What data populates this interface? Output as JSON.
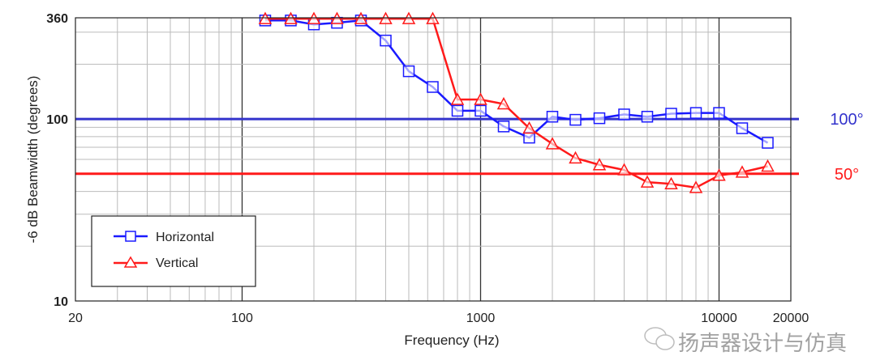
{
  "chart_data": {
    "type": "line",
    "title": "",
    "xlabel": "Frequency (Hz)",
    "ylabel": "-6 dB Beamwidth (degrees)",
    "xscale": "log",
    "yscale": "log",
    "xlim": [
      20,
      20000
    ],
    "ylim": [
      10,
      360
    ],
    "xticks": [
      20,
      100,
      1000,
      10000,
      20000
    ],
    "xtick_labels": [
      "20",
      "100",
      "1000",
      "10000",
      "20000"
    ],
    "yticks": [
      10,
      100,
      360
    ],
    "ytick_labels": [
      "10",
      "100",
      "360"
    ],
    "grid": true,
    "legend_position": "bottom-left",
    "x": [
      125,
      160,
      200,
      250,
      315,
      400,
      500,
      630,
      800,
      1000,
      1250,
      1600,
      2000,
      2500,
      3150,
      4000,
      5000,
      6300,
      8000,
      10000,
      12500,
      16000
    ],
    "series": [
      {
        "name": "Horizontal",
        "color": "#1a1aff",
        "marker": "square",
        "values": [
          348,
          348,
          331,
          338,
          348,
          270,
          183,
          150,
          111,
          111,
          91,
          79,
          103,
          99,
          101,
          106,
          103,
          107,
          108,
          108,
          89,
          74
        ]
      },
      {
        "name": "Vertical",
        "color": "#ff1a1a",
        "marker": "triangle",
        "values": [
          356,
          356,
          356,
          356,
          356,
          356,
          356,
          356,
          128,
          128,
          121,
          89,
          73,
          61,
          56,
          52.5,
          45,
          44,
          42,
          49,
          51,
          55
        ]
      }
    ],
    "reference_lines": [
      {
        "value": 100,
        "label": "100°",
        "color": "#3333cc"
      },
      {
        "value": 50,
        "label": "50°",
        "color": "#ff1a1a"
      }
    ]
  },
  "watermark": "扬声器设计与仿真"
}
